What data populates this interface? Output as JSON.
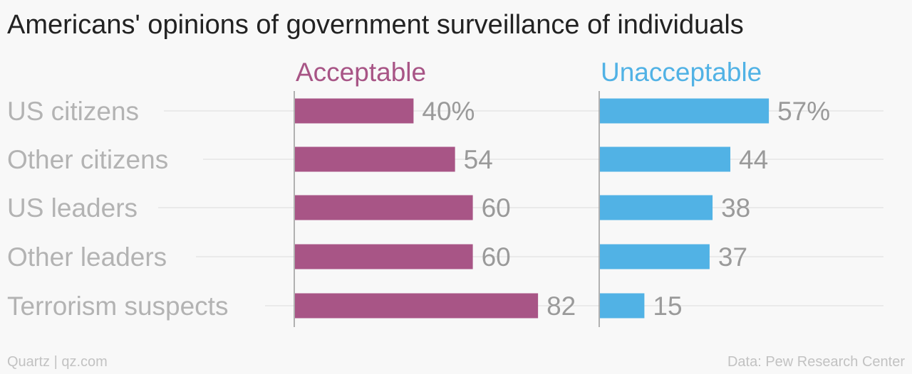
{
  "chart_data": {
    "type": "bar",
    "title": "Americans' opinions of government surveillance of individuals",
    "categories": [
      "US citizens",
      "Other citizens",
      "US leaders",
      "Other leaders",
      "Terrorism suspects"
    ],
    "series": [
      {
        "name": "Acceptable",
        "values": [
          40,
          54,
          60,
          60,
          82
        ],
        "labels": [
          "40%",
          "54",
          "60",
          "60",
          "82"
        ],
        "color": "#a85586"
      },
      {
        "name": "Unacceptable",
        "values": [
          57,
          44,
          38,
          37,
          15
        ],
        "labels": [
          "57%",
          "44",
          "38",
          "37",
          "15"
        ],
        "color": "#51b2e5"
      }
    ],
    "xlim": [
      0,
      100
    ],
    "orientation": "horizontal",
    "layout": "small-multiples"
  },
  "footer": {
    "source_left": "Quartz | qz.com",
    "source_right": "Data: Pew Research Center"
  },
  "colors": {
    "category_label": "#b3b3b3",
    "value_label": "#9a9a9a",
    "gridline": "#e6e6e6",
    "axis": "#999999"
  }
}
